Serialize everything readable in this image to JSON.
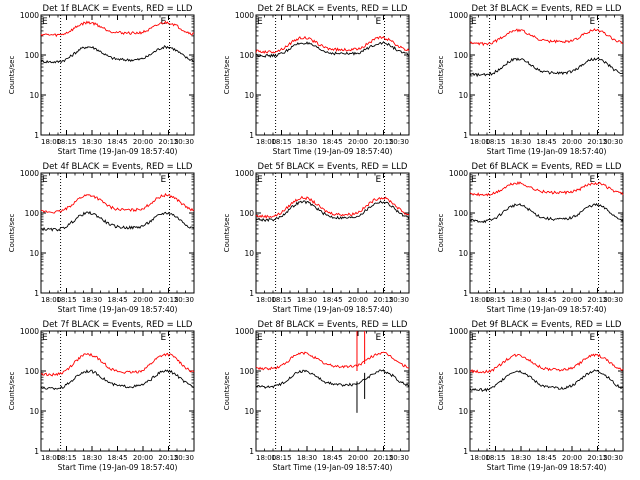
{
  "figure": {
    "time_axis": {
      "tick_labels": [
        "18:00",
        "18:15",
        "18:30",
        "18:45",
        "20:00",
        "20:15",
        "20:30"
      ],
      "label": "Start Time (19-Jan-09 18:57:40)"
    },
    "y_axis": {
      "label": "Counts/sec",
      "scale": "log",
      "ylim": [
        1,
        1000
      ],
      "tick_labels": [
        "1",
        "10",
        "100",
        "1000"
      ]
    },
    "marker_text": "E",
    "colors": {
      "events": "#000000",
      "lld": "#ff0000"
    }
  },
  "chart_data": [
    {
      "type": "line",
      "title": "Det 1f BLACK = Events, RED = LLD",
      "xlabel": "Start Time (19-Jan-09 18:57:40)",
      "ylabel": "Counts/sec",
      "yscale": "log",
      "ylim": [
        1,
        1000
      ],
      "x_ticks": [
        "18:00",
        "18:15",
        "18:30",
        "18:45",
        "20:00",
        "20:15",
        "20:30"
      ],
      "series": [
        {
          "name": "Events",
          "color": "#000000",
          "base": 70,
          "peak": 160
        },
        {
          "name": "LLD",
          "color": "#ff0000",
          "base": 330,
          "peak": 650
        }
      ]
    },
    {
      "type": "line",
      "title": "Det 2f BLACK = Events, RED = LLD",
      "xlabel": "Start Time (19-Jan-09 18:57:40)",
      "ylabel": "Counts/sec",
      "yscale": "log",
      "ylim": [
        1,
        1000
      ],
      "x_ticks": [
        "18:00",
        "18:15",
        "18:30",
        "18:45",
        "20:00",
        "20:15",
        "20:30"
      ],
      "series": [
        {
          "name": "Events",
          "color": "#000000",
          "base": 100,
          "peak": 200
        },
        {
          "name": "LLD",
          "color": "#ff0000",
          "base": 125,
          "peak": 270
        }
      ]
    },
    {
      "type": "line",
      "title": "Det 3f BLACK = Events, RED = LLD",
      "xlabel": "Start Time (19-Jan-09 18:57:40)",
      "ylabel": "Counts/sec",
      "yscale": "log",
      "ylim": [
        1,
        1000
      ],
      "x_ticks": [
        "18:00",
        "18:15",
        "18:30",
        "18:45",
        "20:00",
        "20:15",
        "20:30"
      ],
      "series": [
        {
          "name": "Events",
          "color": "#000000",
          "base": 33,
          "peak": 80
        },
        {
          "name": "LLD",
          "color": "#ff0000",
          "base": 200,
          "peak": 420
        }
      ]
    },
    {
      "type": "line",
      "title": "Det 4f BLACK = Events, RED = LLD",
      "xlabel": "Start Time (19-Jan-09 18:57:40)",
      "ylabel": "Counts/sec",
      "yscale": "log",
      "ylim": [
        1,
        1000
      ],
      "x_ticks": [
        "18:00",
        "18:15",
        "18:30",
        "18:45",
        "20:00",
        "20:15",
        "20:30"
      ],
      "series": [
        {
          "name": "Events",
          "color": "#000000",
          "base": 40,
          "peak": 100
        },
        {
          "name": "LLD",
          "color": "#ff0000",
          "base": 110,
          "peak": 280
        }
      ]
    },
    {
      "type": "line",
      "title": "Det 5f BLACK = Events, RED = LLD",
      "xlabel": "Start Time (19-Jan-09 18:57:40)",
      "ylabel": "Counts/sec",
      "yscale": "log",
      "ylim": [
        1,
        1000
      ],
      "x_ticks": [
        "18:00",
        "18:15",
        "18:30",
        "18:45",
        "20:00",
        "20:15",
        "20:30"
      ],
      "series": [
        {
          "name": "Events",
          "color": "#000000",
          "base": 70,
          "peak": 190
        },
        {
          "name": "LLD",
          "color": "#ff0000",
          "base": 85,
          "peak": 240
        }
      ]
    },
    {
      "type": "line",
      "title": "Det 6f BLACK = Events, RED = LLD",
      "xlabel": "Start Time (19-Jan-09 18:57:40)",
      "ylabel": "Counts/sec",
      "yscale": "log",
      "ylim": [
        1,
        1000
      ],
      "x_ticks": [
        "18:00",
        "18:15",
        "18:30",
        "18:45",
        "20:00",
        "20:15",
        "20:30"
      ],
      "series": [
        {
          "name": "Events",
          "color": "#000000",
          "base": 65,
          "peak": 160
        },
        {
          "name": "LLD",
          "color": "#ff0000",
          "base": 300,
          "peak": 560
        }
      ]
    },
    {
      "type": "line",
      "title": "Det 7f BLACK = Events, RED = LLD",
      "xlabel": "Start Time (19-Jan-09 18:57:40)",
      "ylabel": "Counts/sec",
      "yscale": "log",
      "ylim": [
        1,
        1000
      ],
      "x_ticks": [
        "18:00",
        "18:15",
        "18:30",
        "18:45",
        "20:00",
        "20:15",
        "20:30"
      ],
      "series": [
        {
          "name": "Events",
          "color": "#000000",
          "base": 38,
          "peak": 100
        },
        {
          "name": "LLD",
          "color": "#ff0000",
          "base": 85,
          "peak": 260
        }
      ]
    },
    {
      "type": "line",
      "title": "Det 8f BLACK = Events, RED = LLD",
      "xlabel": "Start Time (19-Jan-09 18:57:40)",
      "ylabel": "Counts/sec",
      "yscale": "log",
      "ylim": [
        1,
        1000
      ],
      "x_ticks": [
        "18:00",
        "18:15",
        "18:30",
        "18:45",
        "20:00",
        "20:15",
        "20:30"
      ],
      "series": [
        {
          "name": "Events",
          "color": "#000000",
          "base": 42,
          "peak": 100,
          "spikes": [
            {
              "at": 0.66,
              "low": 9,
              "high": 55
            },
            {
              "at": 0.71,
              "low": 20,
              "high": 90
            }
          ]
        },
        {
          "name": "LLD",
          "color": "#ff0000",
          "base": 120,
          "peak": 280,
          "spikes": [
            {
              "at": 0.66,
              "low": 100,
              "high": 1000
            },
            {
              "at": 0.71,
              "low": 150,
              "high": 1000
            }
          ]
        }
      ]
    },
    {
      "type": "line",
      "title": "Det 9f BLACK = Events, RED = LLD",
      "xlabel": "Start Time (19-Jan-09 18:57:40)",
      "ylabel": "Counts/sec",
      "yscale": "log",
      "ylim": [
        1,
        1000
      ],
      "x_ticks": [
        "18:00",
        "18:15",
        "18:30",
        "18:45",
        "20:00",
        "20:15",
        "20:30"
      ],
      "series": [
        {
          "name": "Events",
          "color": "#000000",
          "base": 35,
          "peak": 100
        },
        {
          "name": "LLD",
          "color": "#ff0000",
          "base": 100,
          "peak": 250
        }
      ]
    }
  ]
}
